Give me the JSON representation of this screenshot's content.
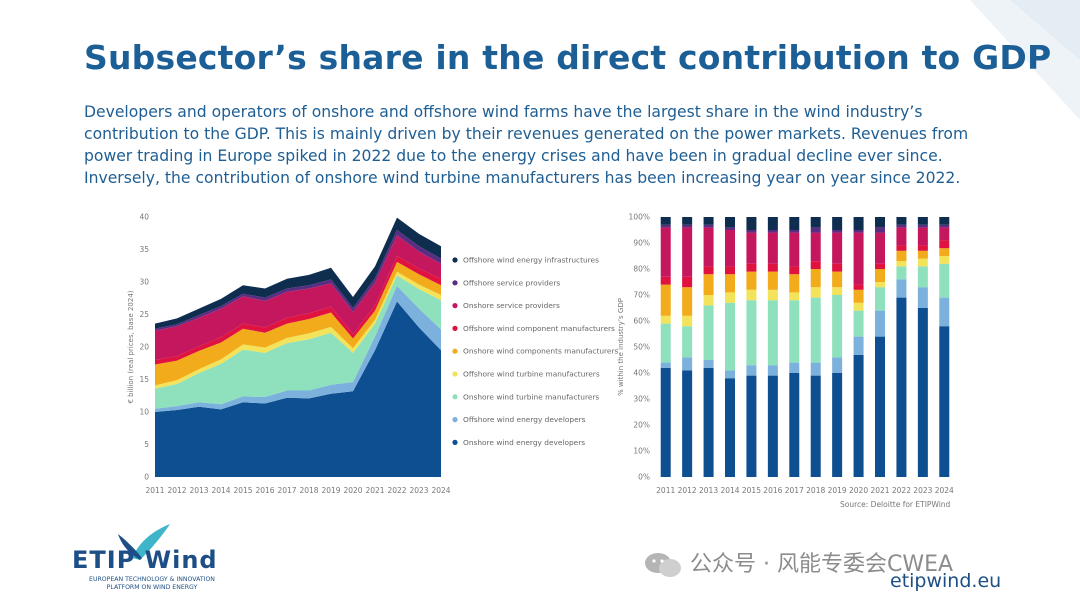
{
  "slide": {
    "title": "Subsector’s share in the direct contribution to GDP",
    "paragraph_lines": [
      "Developers and operators of onshore and offshore wind farms have the largest share in the wind industry’s",
      "contribution to the GDP. This is mainly driven by their revenues generated on the power markets. Revenues from",
      "power trading in Europe spiked in 2022 due to the energy crises and have been in gradual decline ever since.",
      "Inversely, the contribution of onshore wind turbine manufacturers has been increasing year on year since 2022."
    ],
    "source": "Source: Deloitte for ETIPWind",
    "logo": {
      "name": "ETIP Wind",
      "tagline_1": "EUROPEAN TECHNOLOGY & INNOVATION",
      "tagline_2": "PLATFORM ON WIND ENERGY"
    },
    "watermark": "公众号 · 风能专委会CWEA",
    "website": "etipwind.eu",
    "colors": {
      "title": "#1c5f96",
      "text": "#1f5e93"
    }
  },
  "chart_data": [
    {
      "type": "area",
      "stacked": true,
      "title": "",
      "ylabel": "€ billion (real prices, base 2024)",
      "xlabel": "",
      "ylim": [
        0,
        40
      ],
      "yticks": [
        0,
        5,
        10,
        15,
        20,
        25,
        30,
        35,
        40
      ],
      "x": [
        "2011",
        "2012",
        "2013",
        "2014",
        "2015",
        "2016",
        "2017",
        "2018",
        "2019",
        "2020",
        "2021",
        "2022",
        "2023",
        "2024"
      ],
      "legend_position": "right",
      "series": [
        {
          "name": "Onshore wind energy developers",
          "color": "#0d4f91",
          "values": [
            10.0,
            10.3,
            10.8,
            10.4,
            11.5,
            11.3,
            12.2,
            12.1,
            12.8,
            13.2,
            19.5,
            27.0,
            23.0,
            19.5
          ]
        },
        {
          "name": "Offshore wind energy developers",
          "color": "#7bb1dc",
          "values": [
            0.5,
            0.6,
            0.7,
            0.8,
            0.9,
            1.0,
            1.1,
            1.2,
            1.4,
            1.4,
            2.1,
            2.4,
            2.9,
            3.2
          ]
        },
        {
          "name": "Onshore wind turbine manufacturers",
          "color": "#8ee1bc",
          "values": [
            3.1,
            3.4,
            4.5,
            6.2,
            7.2,
            6.8,
            7.3,
            7.9,
            8.0,
            4.5,
            2.0,
            1.6,
            3.0,
            4.5
          ]
        },
        {
          "name": "Offshore wind turbine manufacturers",
          "color": "#f2e35a",
          "values": [
            0.5,
            0.6,
            0.6,
            0.7,
            0.8,
            0.8,
            0.8,
            0.9,
            0.9,
            0.7,
            0.6,
            0.6,
            0.7,
            0.8
          ]
        },
        {
          "name": "Onshore wind components manufacturers",
          "color": "#f1ab1b",
          "values": [
            3.2,
            3.0,
            2.8,
            2.6,
            2.4,
            2.3,
            2.2,
            2.2,
            2.2,
            1.5,
            1.4,
            1.5,
            1.6,
            1.5
          ]
        },
        {
          "name": "Offshore wind component manufacturers",
          "color": "#e0123f",
          "values": [
            0.7,
            0.7,
            0.7,
            0.8,
            0.8,
            0.8,
            0.9,
            0.9,
            0.9,
            0.7,
            0.8,
            0.9,
            0.9,
            1.0
          ]
        },
        {
          "name": "Onshore service providers",
          "color": "#c4175e",
          "values": [
            4.5,
            4.6,
            4.4,
            4.4,
            4.2,
            4.1,
            4.0,
            3.8,
            3.6,
            3.4,
            3.5,
            3.2,
            2.6,
            2.3
          ]
        },
        {
          "name": "Offshore service providers",
          "color": "#5a2d82",
          "values": [
            0.3,
            0.3,
            0.4,
            0.4,
            0.4,
            0.5,
            0.5,
            0.5,
            0.6,
            0.6,
            0.7,
            0.8,
            0.8,
            0.8
          ]
        },
        {
          "name": "Offshore wind energy infrastructures",
          "color": "#0f2e4f",
          "values": [
            0.8,
            0.9,
            1.0,
            1.1,
            1.3,
            1.4,
            1.5,
            1.6,
            1.8,
            1.7,
            1.8,
            1.9,
            1.9,
            1.9
          ]
        }
      ]
    },
    {
      "type": "bar",
      "stacked": true,
      "title": "",
      "ylabel": "% within the industry’s GDP",
      "xlabel": "",
      "ylim": [
        0,
        100
      ],
      "yticks": [
        "0%",
        "10%",
        "20%",
        "30%",
        "40%",
        "50%",
        "60%",
        "70%",
        "80%",
        "90%",
        "100%"
      ],
      "categories": [
        "2011",
        "2012",
        "2013",
        "2014",
        "2015",
        "2016",
        "2017",
        "2018",
        "2019",
        "2020",
        "2021",
        "2022",
        "2023",
        "2024"
      ],
      "series": [
        {
          "name": "Onshore wind energy developers",
          "color": "#0d4f91",
          "values": [
            42,
            41,
            42,
            38,
            39,
            39,
            40,
            39,
            40,
            47,
            54,
            69,
            65,
            58
          ]
        },
        {
          "name": "Offshore wind energy developers",
          "color": "#7bb1dc",
          "values": [
            2,
            5,
            3,
            3,
            4,
            4,
            4,
            5,
            6,
            7,
            10,
            7,
            8,
            11
          ]
        },
        {
          "name": "Onshore wind turbine manufacturers",
          "color": "#8ee1bc",
          "values": [
            15,
            12,
            21,
            26,
            25,
            25,
            24,
            25,
            24,
            10,
            9,
            5,
            8,
            13
          ]
        },
        {
          "name": "Offshore wind turbine manufacturers",
          "color": "#f2e35a",
          "values": [
            3,
            4,
            4,
            4,
            4,
            4,
            3,
            4,
            3,
            3,
            2,
            2,
            3,
            3
          ]
        },
        {
          "name": "Onshore wind components manufacturers",
          "color": "#f1ab1b",
          "values": [
            12,
            11,
            8,
            7,
            7,
            7,
            7,
            7,
            6,
            5,
            5,
            4,
            3,
            3
          ]
        },
        {
          "name": "Offshore wind component manufacturers",
          "color": "#e0123f",
          "values": [
            3,
            4,
            3,
            3,
            3,
            3,
            3,
            3,
            3,
            2,
            2,
            2,
            2,
            3
          ]
        },
        {
          "name": "Onshore service providers",
          "color": "#c4175e",
          "values": [
            19,
            19,
            15,
            14,
            12,
            12,
            13,
            11,
            12,
            20,
            12,
            7,
            7,
            5
          ]
        },
        {
          "name": "Offshore service providers",
          "color": "#5a2d82",
          "values": [
            1,
            1,
            1,
            1,
            1,
            1,
            1,
            2,
            1,
            1,
            2,
            1,
            1,
            1
          ]
        },
        {
          "name": "Offshore wind energy infrastructures",
          "color": "#0f2e4f",
          "values": [
            3,
            3,
            3,
            4,
            5,
            5,
            5,
            4,
            5,
            5,
            4,
            3,
            3,
            3
          ]
        }
      ]
    }
  ]
}
